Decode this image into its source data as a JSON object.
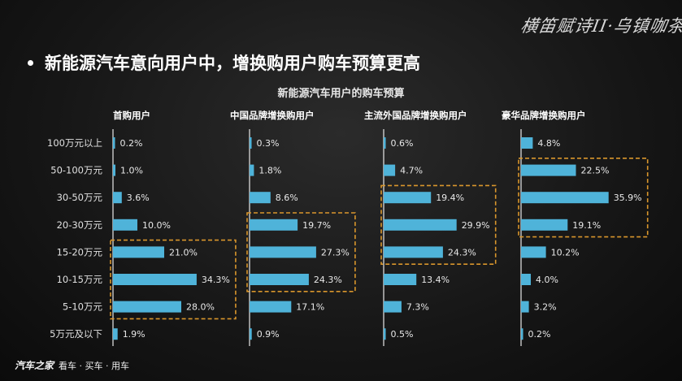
{
  "logo_text": "横笛赋诗II·乌镇咖茶",
  "headline": "新能源汽车意向用户中，增换购用户购车预算更高",
  "footer": {
    "brand": "汽车之家",
    "tagline": "看车 · 买车 · 用车"
  },
  "colors": {
    "bar": "#4fb3d9",
    "highlight_box": "#d9962c",
    "background": "#161616"
  },
  "chart_data": {
    "type": "bar",
    "orientation": "horizontal",
    "title": "新能源汽车用户的购车预算",
    "categories": [
      "100万元以上",
      "50-100万元",
      "30-50万元",
      "20-30万元",
      "15-20万元",
      "10-15万元",
      "5-10万元",
      "5万元及以下"
    ],
    "series": [
      {
        "name": "首购用户",
        "values": [
          0.2,
          1.0,
          3.6,
          10.0,
          21.0,
          34.3,
          28.0,
          1.9
        ],
        "highlight": [
          "15-20万元",
          "10-15万元",
          "5-10万元"
        ]
      },
      {
        "name": "中国品牌增换购用户",
        "values": [
          0.3,
          1.8,
          8.6,
          19.7,
          27.3,
          24.3,
          17.1,
          0.9
        ],
        "highlight": [
          "20-30万元",
          "15-20万元",
          "10-15万元"
        ]
      },
      {
        "name": "主流外国品牌增换购用户",
        "values": [
          0.6,
          4.7,
          19.4,
          29.9,
          24.3,
          13.4,
          7.3,
          0.5
        ],
        "highlight": [
          "30-50万元",
          "20-30万元",
          "15-20万元"
        ]
      },
      {
        "name": "豪华品牌增换购用户",
        "values": [
          4.8,
          22.5,
          35.9,
          19.1,
          10.2,
          4.0,
          3.2,
          0.2
        ],
        "highlight": [
          "50-100万元",
          "30-50万元",
          "20-30万元"
        ]
      }
    ],
    "value_suffix": "%",
    "grid": false,
    "legend": "none"
  }
}
